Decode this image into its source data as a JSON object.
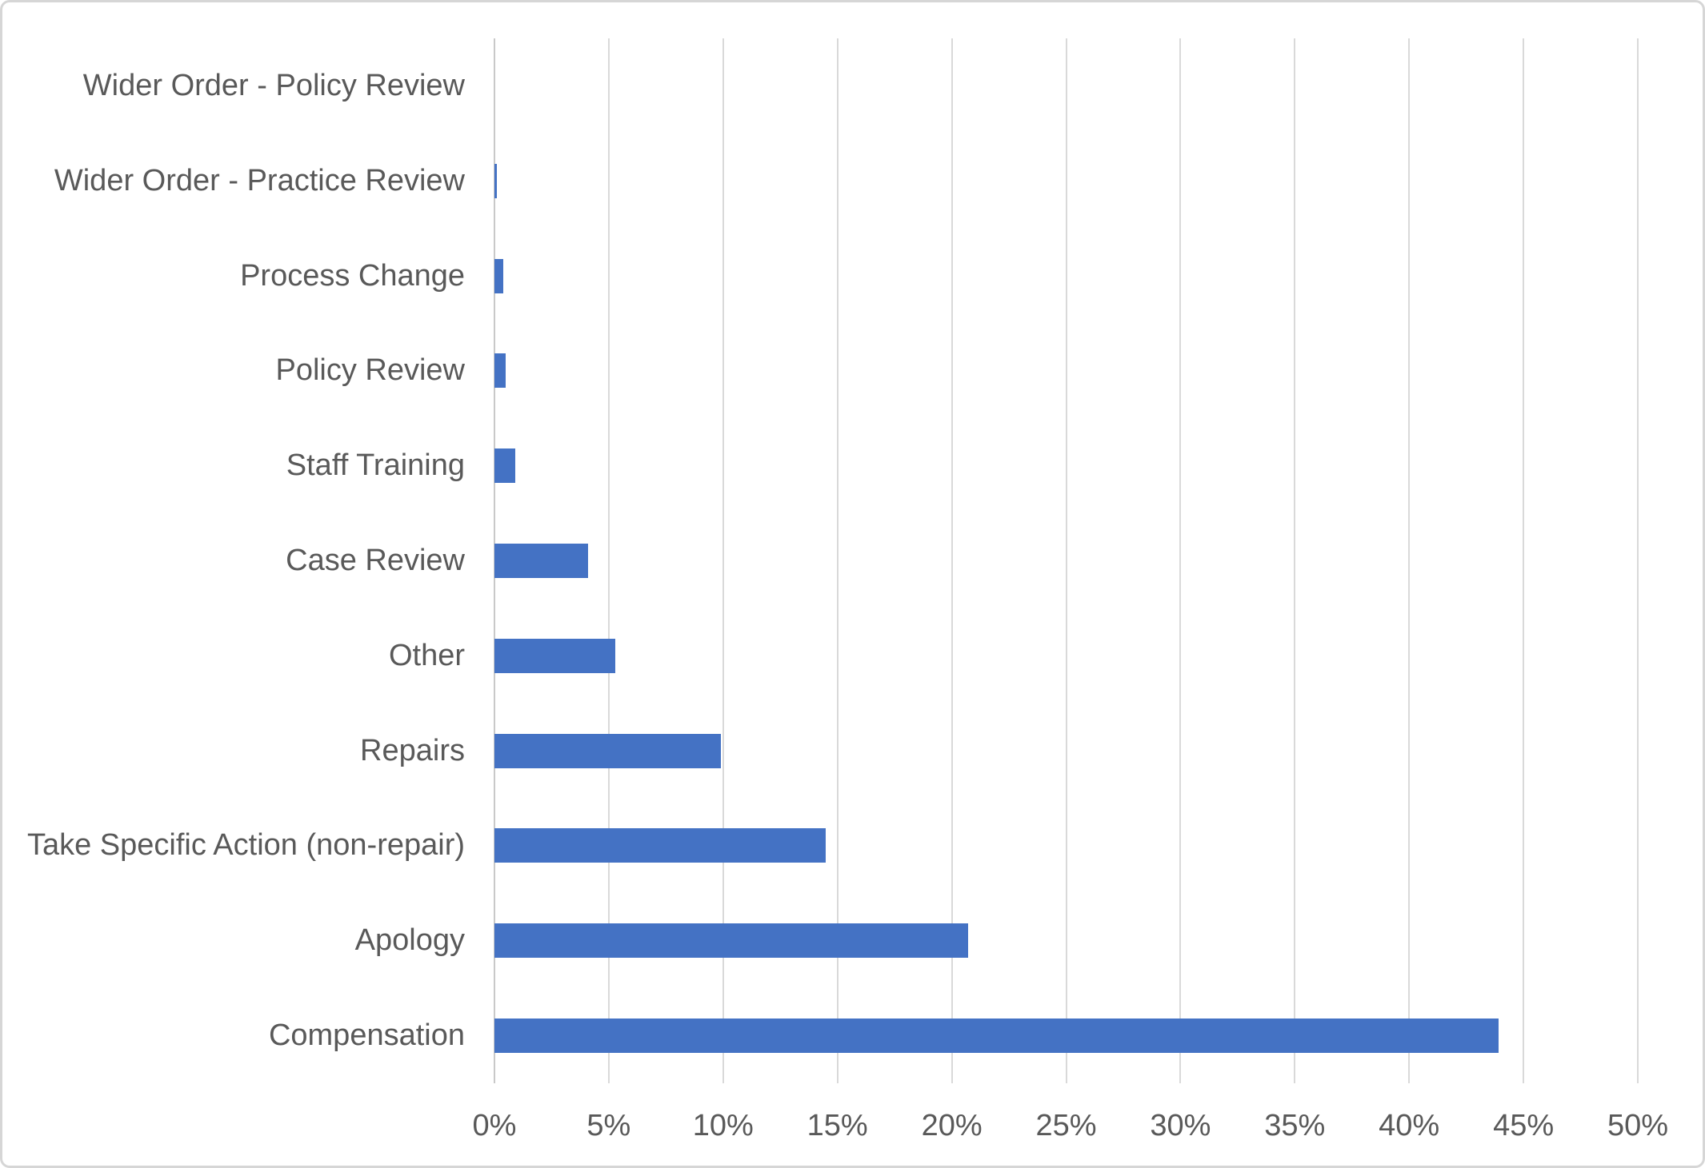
{
  "chart_data": {
    "type": "bar",
    "orientation": "horizontal",
    "title": "",
    "xlabel": "",
    "ylabel": "",
    "categories": [
      "Wider Order - Policy Review",
      "Wider Order - Practice Review",
      "Process Change",
      "Policy Review",
      "Staff Training",
      "Case Review",
      "Other",
      "Repairs",
      "Take Specific Action (non-repair)",
      "Apology",
      "Compensation"
    ],
    "values": [
      0,
      0.1,
      0.4,
      0.5,
      0.9,
      4.1,
      5.3,
      9.9,
      14.5,
      20.7,
      43.9
    ],
    "value_unit": "%",
    "xlim": [
      0,
      50
    ],
    "x_tick_step": 5,
    "x_ticks": [
      "0%",
      "5%",
      "10%",
      "15%",
      "20%",
      "25%",
      "30%",
      "35%",
      "40%",
      "45%",
      "50%"
    ],
    "grid": "vertical",
    "legend": "none",
    "colors": {
      "bar": "#4472c4",
      "gridline": "#d9d9d9",
      "axis_line": "#c9c9c9",
      "text": "#595959",
      "background": "#ffffff",
      "border": "#d6d6d6"
    }
  }
}
